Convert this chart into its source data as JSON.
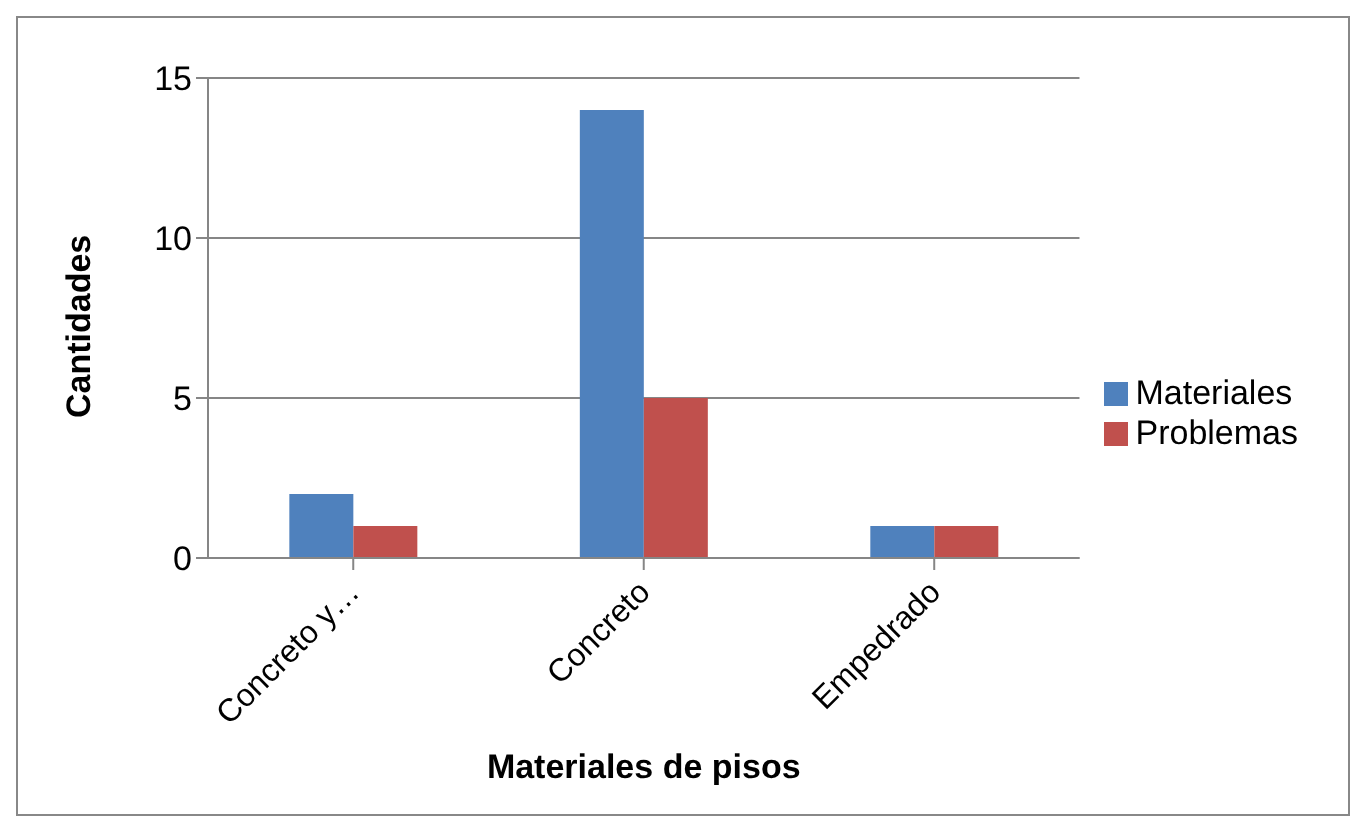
{
  "chart_data": {
    "type": "bar",
    "xlabel": "Materiales de pisos",
    "ylabel": "Cantidades",
    "categories": [
      "Concreto y…",
      "Concreto",
      "Empedrado"
    ],
    "series": [
      {
        "name": "Materiales",
        "color": "#4f81bd",
        "values": [
          2,
          14,
          1
        ]
      },
      {
        "name": "Problemas",
        "color": "#c0504d",
        "values": [
          1,
          5,
          1
        ]
      }
    ],
    "ylim": [
      0,
      15
    ],
    "yticks": [
      0,
      5,
      10,
      15
    ],
    "grid": "y",
    "legend": "right"
  }
}
